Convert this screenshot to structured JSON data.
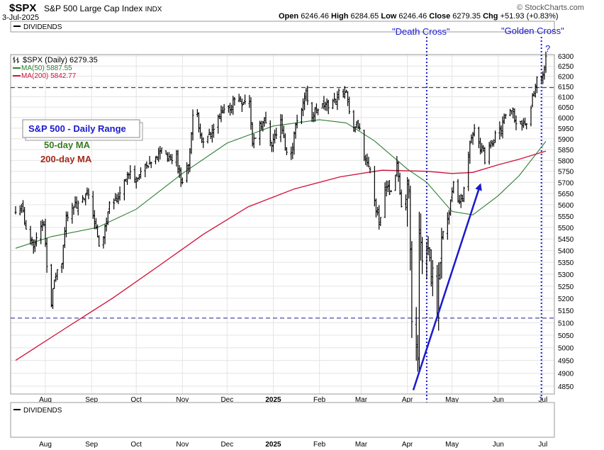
{
  "header": {
    "symbol": "$SPX",
    "name": "S&P 500 Large Cap Index",
    "exchange": "INDX",
    "date": "3-Jul-2025",
    "open_label": "Open",
    "open": "6246.46",
    "high_label": "High",
    "high": "6284.65",
    "low_label": "Low",
    "low": "6246.46",
    "close_label": "Close",
    "close": "6279.35",
    "chg_label": "Chg",
    "chg": "+51.93 (+0.83%)",
    "brand": "© StockCharts.com"
  },
  "panels": {
    "top_label": "DIVIDENDS",
    "bottom_label": "DIVIDENDS"
  },
  "legend": {
    "price": "$SPX (Daily) 6279.35",
    "ma50": "MA(50) 5887.55",
    "ma200": "MA(200) 5842.77"
  },
  "annotations": {
    "range_box": "S&P 500 - Daily Range",
    "ma50_text": "50-day MA",
    "ma200_text": "200-day MA",
    "death_cross": "\"Death Cross\"",
    "golden_cross": "\"Golden Cross\"",
    "question": "?"
  },
  "colors": {
    "price": "#000000",
    "ma50": "#2e7d32",
    "ma200": "#d0103a",
    "annotation_blue": "#1a1acc",
    "ma50_text": "#3a7a24",
    "ma200_text": "#a5281a",
    "grid": "#e4e4e4"
  },
  "chart_data": {
    "type": "line",
    "y_scale": "log",
    "ylim": [
      4800,
      6320
    ],
    "y_ticks": [
      4850,
      4900,
      4950,
      5000,
      5050,
      5100,
      5150,
      5200,
      5250,
      5300,
      5350,
      5400,
      5450,
      5500,
      5550,
      5600,
      5650,
      5700,
      5750,
      5800,
      5850,
      5900,
      5950,
      6000,
      6050,
      6100,
      6150,
      6200,
      6250,
      6300
    ],
    "x_start": "2024-07-12",
    "x_end": "2025-07-03",
    "x_ticks": [
      {
        "label": "Aug",
        "date": "2024-08-01"
      },
      {
        "label": "Sep",
        "date": "2024-09-01"
      },
      {
        "label": "Oct",
        "date": "2024-10-01"
      },
      {
        "label": "Nov",
        "date": "2024-11-01"
      },
      {
        "label": "Dec",
        "date": "2024-12-01"
      },
      {
        "label": "2025",
        "date": "2025-01-01",
        "bold": true
      },
      {
        "label": "Feb",
        "date": "2025-02-01"
      },
      {
        "label": "Mar",
        "date": "2025-03-01"
      },
      {
        "label": "Apr",
        "date": "2025-04-01"
      },
      {
        "label": "May",
        "date": "2025-05-01"
      },
      {
        "label": "Jun",
        "date": "2025-06-01"
      },
      {
        "label": "Jul",
        "date": "2025-07-01"
      }
    ],
    "horizontal_levels": [
      6144,
      5119
    ],
    "vertical_markers": [
      {
        "label": "Death Cross",
        "date": "2025-04-14"
      },
      {
        "label": "Golden Cross",
        "date": "2025-06-30"
      }
    ],
    "arrow": {
      "from": {
        "date": "2025-04-05",
        "value": 4835
      },
      "to": {
        "date": "2025-05-20",
        "value": 5690
      }
    },
    "series": [
      {
        "name": "$SPX (Daily)",
        "kind": "ohlc",
        "points": [
          [
            "2024-07-12",
            5560
          ],
          [
            "2024-07-16",
            5600
          ],
          [
            "2024-07-19",
            5480
          ],
          [
            "2024-07-24",
            5430
          ],
          [
            "2024-07-26",
            5460
          ],
          [
            "2024-07-31",
            5520
          ],
          [
            "2024-08-02",
            5345
          ],
          [
            "2024-08-05",
            5190
          ],
          [
            "2024-08-08",
            5300
          ],
          [
            "2024-08-12",
            5345
          ],
          [
            "2024-08-15",
            5545
          ],
          [
            "2024-08-19",
            5605
          ],
          [
            "2024-08-22",
            5590
          ],
          [
            "2024-08-26",
            5615
          ],
          [
            "2024-08-30",
            5648
          ],
          [
            "2024-09-03",
            5530
          ],
          [
            "2024-09-06",
            5410
          ],
          [
            "2024-09-10",
            5495
          ],
          [
            "2024-09-13",
            5625
          ],
          [
            "2024-09-18",
            5620
          ],
          [
            "2024-09-23",
            5720
          ],
          [
            "2024-09-27",
            5740
          ],
          [
            "2024-10-01",
            5710
          ],
          [
            "2024-10-04",
            5750
          ],
          [
            "2024-10-10",
            5770
          ],
          [
            "2024-10-15",
            5815
          ],
          [
            "2024-10-18",
            5865
          ],
          [
            "2024-10-23",
            5800
          ],
          [
            "2024-10-28",
            5820
          ],
          [
            "2024-10-31",
            5705
          ],
          [
            "2024-11-05",
            5780
          ],
          [
            "2024-11-08",
            5995
          ],
          [
            "2024-11-11",
            6000
          ],
          [
            "2024-11-15",
            5870
          ],
          [
            "2024-11-20",
            5920
          ],
          [
            "2024-11-25",
            5985
          ],
          [
            "2024-11-29",
            6030
          ],
          [
            "2024-12-03",
            6050
          ],
          [
            "2024-12-06",
            6090
          ],
          [
            "2024-12-11",
            6080
          ],
          [
            "2024-12-16",
            6075
          ],
          [
            "2024-12-18",
            5875
          ],
          [
            "2024-12-23",
            5975
          ],
          [
            "2024-12-27",
            5975
          ],
          [
            "2024-12-31",
            5880
          ],
          [
            "2025-01-06",
            5975
          ],
          [
            "2025-01-10",
            5830
          ],
          [
            "2025-01-13",
            5840
          ],
          [
            "2025-01-17",
            5995
          ],
          [
            "2025-01-23",
            6115
          ],
          [
            "2025-01-27",
            6010
          ],
          [
            "2025-01-31",
            6040
          ],
          [
            "2025-02-05",
            6060
          ],
          [
            "2025-02-10",
            6070
          ],
          [
            "2025-02-14",
            6115
          ],
          [
            "2025-02-19",
            6145
          ],
          [
            "2025-02-21",
            6015
          ],
          [
            "2025-02-25",
            5955
          ],
          [
            "2025-02-28",
            5955
          ],
          [
            "2025-03-04",
            5780
          ],
          [
            "2025-03-07",
            5770
          ],
          [
            "2025-03-10",
            5615
          ],
          [
            "2025-03-13",
            5520
          ],
          [
            "2025-03-17",
            5675
          ],
          [
            "2025-03-21",
            5665
          ],
          [
            "2025-03-25",
            5775
          ],
          [
            "2025-03-28",
            5580
          ],
          [
            "2025-04-02",
            5670
          ],
          [
            "2025-04-04",
            5075
          ],
          [
            "2025-04-08",
            4985
          ],
          [
            "2025-04-09",
            5455
          ],
          [
            "2025-04-11",
            5365
          ],
          [
            "2025-04-15",
            5400
          ],
          [
            "2025-04-21",
            5160
          ],
          [
            "2025-04-24",
            5485
          ],
          [
            "2025-04-29",
            5560
          ],
          [
            "2025-05-02",
            5685
          ],
          [
            "2025-05-06",
            5610
          ],
          [
            "2025-05-09",
            5660
          ],
          [
            "2025-05-12",
            5845
          ],
          [
            "2025-05-16",
            5960
          ],
          [
            "2025-05-21",
            5845
          ],
          [
            "2025-05-23",
            5805
          ],
          [
            "2025-05-28",
            5890
          ],
          [
            "2025-06-02",
            5935
          ],
          [
            "2025-06-06",
            6000
          ],
          [
            "2025-06-11",
            6025
          ],
          [
            "2025-06-13",
            5975
          ],
          [
            "2025-06-18",
            5985
          ],
          [
            "2025-06-20",
            5965
          ],
          [
            "2025-06-24",
            6095
          ],
          [
            "2025-06-27",
            6175
          ],
          [
            "2025-06-30",
            6205
          ],
          [
            "2025-07-02",
            6227
          ],
          [
            "2025-07-03",
            6279
          ]
        ]
      },
      {
        "name": "MA(50)",
        "kind": "line",
        "points": [
          [
            "2024-07-12",
            5410
          ],
          [
            "2024-08-05",
            5460
          ],
          [
            "2024-09-05",
            5500
          ],
          [
            "2024-10-01",
            5580
          ],
          [
            "2024-11-01",
            5740
          ],
          [
            "2024-12-01",
            5880
          ],
          [
            "2025-01-01",
            5960
          ],
          [
            "2025-02-01",
            5990
          ],
          [
            "2025-02-19",
            5975
          ],
          [
            "2025-03-10",
            5890
          ],
          [
            "2025-04-01",
            5760
          ],
          [
            "2025-04-14",
            5700
          ],
          [
            "2025-05-01",
            5570
          ],
          [
            "2025-05-15",
            5555
          ],
          [
            "2025-06-01",
            5640
          ],
          [
            "2025-06-15",
            5730
          ],
          [
            "2025-07-03",
            5888
          ]
        ]
      },
      {
        "name": "MA(200)",
        "kind": "line",
        "points": [
          [
            "2024-07-12",
            4950
          ],
          [
            "2024-08-15",
            5080
          ],
          [
            "2024-09-15",
            5200
          ],
          [
            "2024-10-15",
            5330
          ],
          [
            "2024-11-15",
            5470
          ],
          [
            "2024-12-15",
            5590
          ],
          [
            "2025-01-15",
            5670
          ],
          [
            "2025-02-15",
            5725
          ],
          [
            "2025-03-15",
            5755
          ],
          [
            "2025-04-14",
            5750
          ],
          [
            "2025-05-01",
            5740
          ],
          [
            "2025-05-15",
            5745
          ],
          [
            "2025-06-01",
            5780
          ],
          [
            "2025-06-15",
            5805
          ],
          [
            "2025-07-03",
            5843
          ]
        ]
      }
    ]
  }
}
